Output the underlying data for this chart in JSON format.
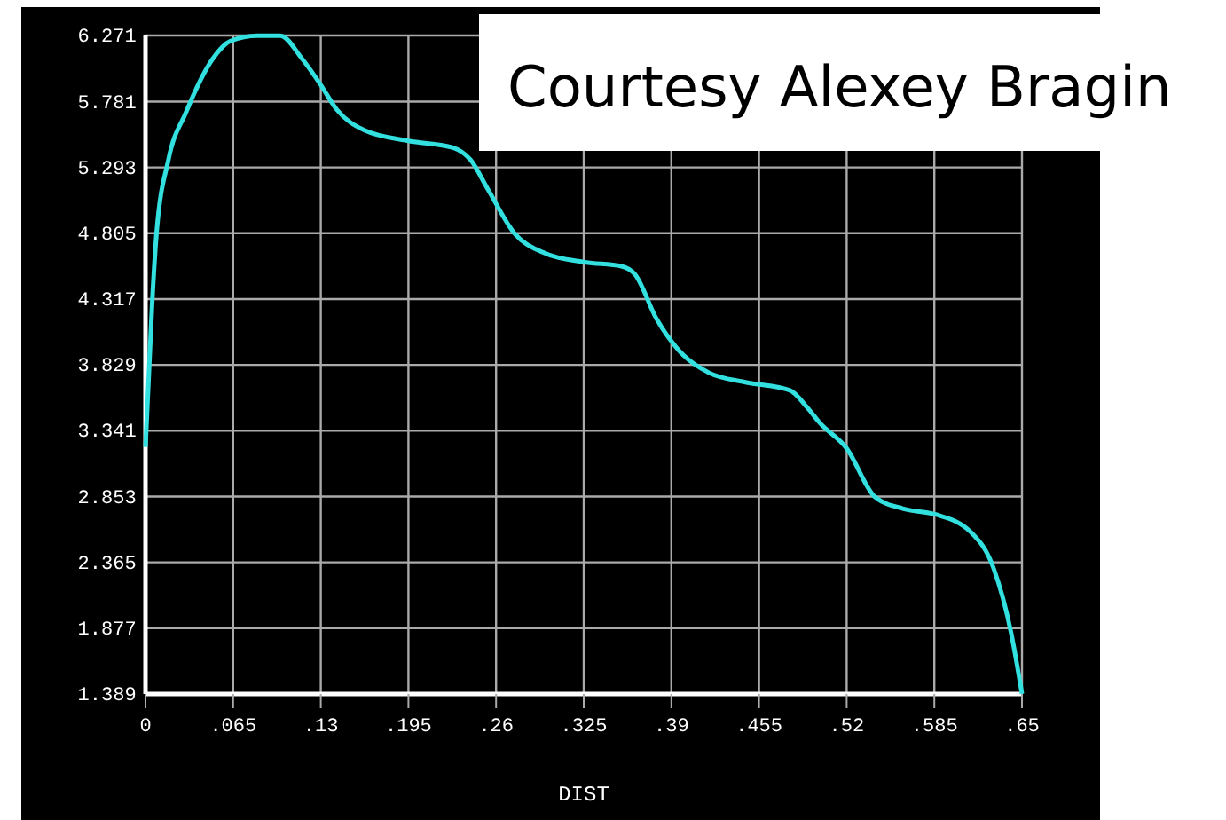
{
  "chart_data": {
    "type": "line",
    "xlabel": "DIST",
    "annotations": [
      "Courtesy Alexey Bragin"
    ],
    "xlim": [
      0,
      0.65
    ],
    "ylim": [
      1.389,
      6.271
    ],
    "xticks": [
      0,
      {
        "value": 0.065,
        "label": ".065"
      },
      {
        "value": 0.13,
        "label": ".13"
      },
      {
        "value": 0.195,
        "label": ".195"
      },
      {
        "value": 0.26,
        "label": ".26"
      },
      {
        "value": 0.325,
        "label": ".325"
      },
      {
        "value": 0.39,
        "label": ".39"
      },
      {
        "value": 0.455,
        "label": ".455"
      },
      {
        "value": 0.52,
        "label": ".52"
      },
      {
        "value": 0.585,
        "label": ".585"
      },
      {
        "value": 0.65,
        "label": ".65"
      }
    ],
    "yticks": [
      1.389,
      1.877,
      2.365,
      2.853,
      3.341,
      3.829,
      4.317,
      4.805,
      5.293,
      5.781,
      6.271
    ],
    "grid": true,
    "marker": "none",
    "line_style": "solid",
    "x": [
      0,
      0.005,
      0.008,
      0.017,
      0.03,
      0.05,
      0.063,
      0.083,
      0.1,
      0.116,
      0.129,
      0.142,
      0.162,
      0.195,
      0.228,
      0.241,
      0.254,
      0.274,
      0.293,
      0.326,
      0.353,
      0.363,
      0.379,
      0.399,
      0.418,
      0.445,
      0.478,
      0.491,
      0.5,
      0.52,
      0.541,
      0.563,
      0.586,
      0.612,
      0.629,
      0.642,
      0.65
    ],
    "series": [
      {
        "color": "#33e0e0",
        "values": [
          3.22,
          4.3,
          4.78,
          5.35,
          5.7,
          6.1,
          6.23,
          6.27,
          6.27,
          6.1,
          5.92,
          5.72,
          5.57,
          5.49,
          5.44,
          5.35,
          5.13,
          4.8,
          4.67,
          4.59,
          4.56,
          4.5,
          4.17,
          3.9,
          3.77,
          3.7,
          3.64,
          3.51,
          3.4,
          3.21,
          2.85,
          2.76,
          2.72,
          2.59,
          2.32,
          1.84,
          1.39
        ]
      }
    ]
  }
}
